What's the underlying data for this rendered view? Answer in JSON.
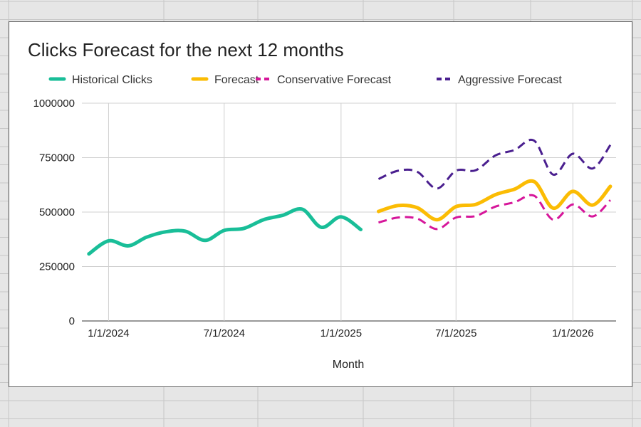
{
  "sheet": {
    "background": "#e6e6e6",
    "gridline_color": "#c7c7c7"
  },
  "chart_data": {
    "type": "line",
    "title": "Clicks Forecast for the next 12 months",
    "xlabel": "Month",
    "ylabel": "",
    "ylim": [
      0,
      1000000
    ],
    "yticks": [
      0,
      250000,
      500000,
      750000,
      1000000
    ],
    "ytick_labels": [
      "0",
      "250000",
      "500000",
      "750000",
      "1000000"
    ],
    "xlim": [
      "2023-11-20",
      "2026-03-10"
    ],
    "xticks": [
      "2024-01-01",
      "2024-07-01",
      "2025-01-01",
      "2025-07-01",
      "2026-01-01"
    ],
    "xtick_labels": [
      "1/1/2024",
      "7/1/2024",
      "1/1/2025",
      "7/1/2025",
      "1/1/2026"
    ],
    "grid": true,
    "legend_position": "top",
    "series": [
      {
        "name": "Historical Clicks",
        "color": "#19be98",
        "style": "solid",
        "x": [
          "2023-12-01",
          "2024-01-01",
          "2024-02-01",
          "2024-03-01",
          "2024-04-01",
          "2024-05-01",
          "2024-06-01",
          "2024-07-01",
          "2024-08-01",
          "2024-09-01",
          "2024-10-01",
          "2024-11-01",
          "2024-12-01",
          "2025-01-01",
          "2025-02-01"
        ],
        "values": [
          308000,
          368000,
          345000,
          385000,
          410000,
          412000,
          370000,
          416000,
          425000,
          465000,
          485000,
          513000,
          430000,
          478000,
          420000
        ]
      },
      {
        "name": "Forecast",
        "color": "#fbbc04",
        "style": "solid",
        "x": [
          "2025-03-01",
          "2025-04-01",
          "2025-05-01",
          "2025-06-01",
          "2025-07-01",
          "2025-08-01",
          "2025-09-01",
          "2025-10-01",
          "2025-11-01",
          "2025-12-01",
          "2026-01-01",
          "2026-02-01",
          "2026-03-01"
        ],
        "values": [
          503000,
          530000,
          520000,
          465000,
          525000,
          535000,
          580000,
          605000,
          640000,
          518000,
          595000,
          532000,
          618000
        ]
      },
      {
        "name": "Conservative Forecast",
        "color": "#d6169a",
        "style": "dashed",
        "x": [
          "2025-03-01",
          "2025-04-01",
          "2025-05-01",
          "2025-06-01",
          "2025-07-01",
          "2025-08-01",
          "2025-09-01",
          "2025-10-01",
          "2025-11-01",
          "2025-12-01",
          "2026-01-01",
          "2026-02-01",
          "2026-03-01"
        ],
        "values": [
          452000,
          475000,
          470000,
          422000,
          475000,
          482000,
          525000,
          545000,
          575000,
          465000,
          535000,
          480000,
          555000
        ]
      },
      {
        "name": "Aggressive Forecast",
        "color": "#4a1f8f",
        "style": "dashed",
        "x": [
          "2025-03-01",
          "2025-04-01",
          "2025-05-01",
          "2025-06-01",
          "2025-07-01",
          "2025-08-01",
          "2025-09-01",
          "2025-10-01",
          "2025-11-01",
          "2025-12-01",
          "2026-01-01",
          "2026-02-01",
          "2026-03-01"
        ],
        "values": [
          652000,
          690000,
          685000,
          608000,
          690000,
          692000,
          760000,
          785000,
          828000,
          672000,
          768000,
          700000,
          808000
        ]
      }
    ]
  }
}
